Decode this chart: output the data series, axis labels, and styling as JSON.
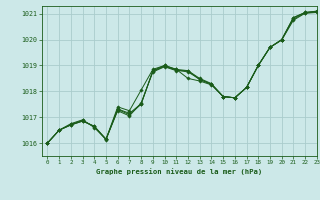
{
  "title": "Graphe pression niveau de la mer (hPa)",
  "bg_color": "#cce8e8",
  "grid_color": "#aacccc",
  "line_color": "#1a5c1a",
  "marker_color": "#1a5c1a",
  "xlim": [
    -0.5,
    23
  ],
  "ylim": [
    1015.5,
    1021.3
  ],
  "yticks": [
    1016,
    1017,
    1018,
    1019,
    1020,
    1021
  ],
  "xticks": [
    0,
    1,
    2,
    3,
    4,
    5,
    6,
    7,
    8,
    9,
    10,
    11,
    12,
    13,
    14,
    15,
    16,
    17,
    18,
    19,
    20,
    21,
    22,
    23
  ],
  "series": [
    [
      1016.0,
      1016.5,
      1016.7,
      1016.85,
      1016.65,
      1016.15,
      1017.3,
      1017.1,
      1017.5,
      1018.8,
      1019.0,
      1018.85,
      1018.8,
      1018.5,
      1018.3,
      1017.8,
      1017.75,
      1018.15,
      1019.0,
      1019.7,
      1020.0,
      1020.85,
      1021.05,
      1021.1
    ],
    [
      1016.0,
      1016.5,
      1016.7,
      1016.85,
      1016.65,
      1016.15,
      1017.4,
      1017.25,
      1018.05,
      1018.85,
      1019.0,
      1018.85,
      1018.5,
      1018.4,
      1018.25,
      1017.8,
      1017.75,
      1018.15,
      1019.0,
      1019.7,
      1020.0,
      1020.85,
      1021.05,
      1021.1
    ],
    [
      1016.0,
      1016.5,
      1016.75,
      1016.9,
      1016.6,
      1016.15,
      1017.25,
      1017.05,
      1017.55,
      1018.75,
      1018.95,
      1018.8,
      1018.8,
      1018.45,
      1018.28,
      1017.8,
      1017.75,
      1018.15,
      1019.0,
      1019.7,
      1019.98,
      1020.75,
      1021.02,
      1021.05
    ],
    [
      1016.0,
      1016.5,
      1016.72,
      1016.88,
      1016.63,
      1016.13,
      1017.32,
      1017.15,
      1017.52,
      1018.78,
      1018.97,
      1018.82,
      1018.75,
      1018.47,
      1018.27,
      1017.8,
      1017.75,
      1018.15,
      1019.0,
      1019.7,
      1019.99,
      1020.8,
      1021.03,
      1021.07
    ]
  ]
}
